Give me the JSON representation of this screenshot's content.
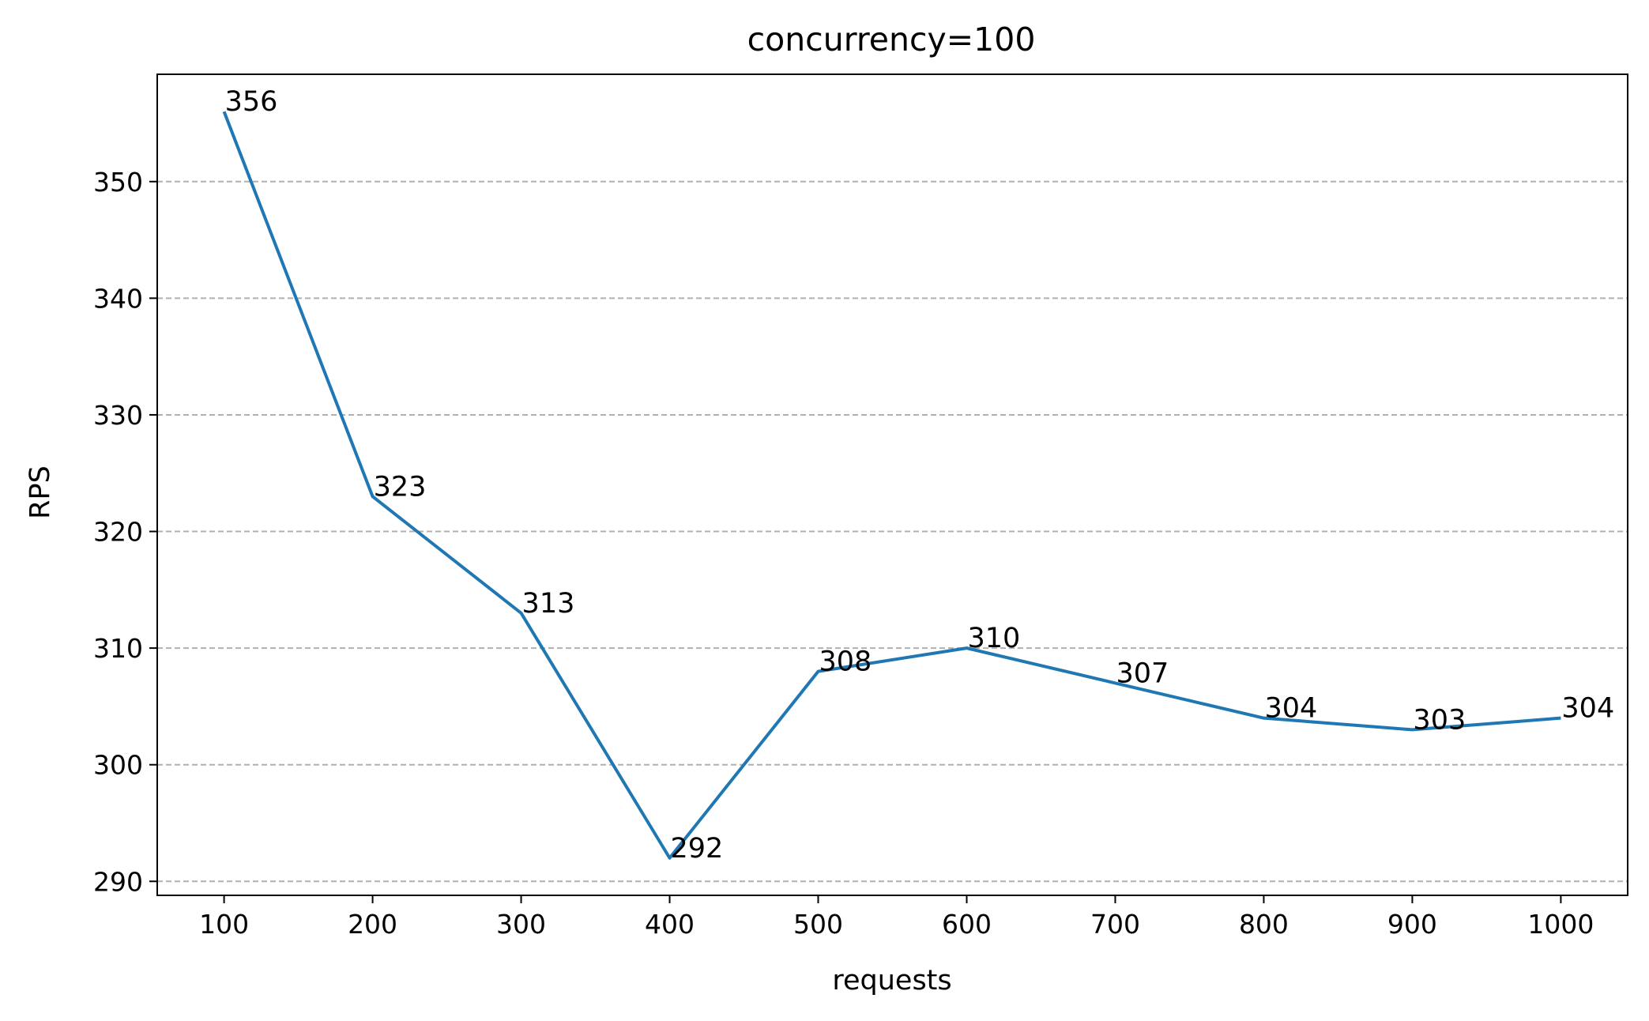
{
  "chart_data": {
    "type": "line",
    "title": "concurrency=100",
    "xlabel": "requests",
    "ylabel": "RPS",
    "x": [
      100,
      200,
      300,
      400,
      500,
      600,
      700,
      800,
      900,
      1000
    ],
    "series": [
      {
        "values": [
          356,
          323,
          313,
          292,
          308,
          310,
          307,
          304,
          303,
          304
        ],
        "color": "#1f77b4"
      }
    ],
    "data_labels": [
      "356",
      "323",
      "313",
      "292",
      "308",
      "310",
      "307",
      "304",
      "303",
      "304"
    ],
    "xticks": [
      100,
      200,
      300,
      400,
      500,
      600,
      700,
      800,
      900,
      1000
    ],
    "xtick_labels": [
      "100",
      "200",
      "300",
      "400",
      "500",
      "600",
      "700",
      "800",
      "900",
      "1000"
    ],
    "yticks": [
      290,
      300,
      310,
      320,
      330,
      340,
      350
    ],
    "ytick_labels": [
      "290",
      "300",
      "310",
      "320",
      "330",
      "340",
      "350"
    ],
    "xlim": [
      55,
      1045
    ],
    "ylim": [
      288.8,
      359.2
    ],
    "grid": {
      "axis": "y",
      "style": "dashed",
      "color": "#b0b0b0"
    },
    "legend": "none"
  }
}
